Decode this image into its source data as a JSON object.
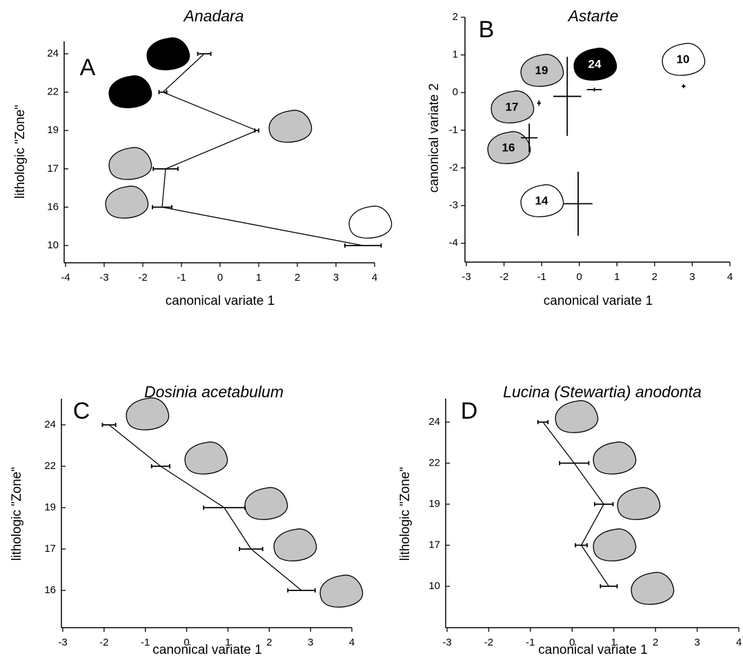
{
  "chart_data": [
    {
      "type": "line",
      "title": "Anadara",
      "panel_label": "A",
      "xlabel": "canonical variate 1",
      "ylabel": "lithologic \"Zone\"",
      "categories": [
        "24",
        "22",
        "19",
        "17",
        "16",
        "10"
      ],
      "values": [
        -0.41,
        -1.48,
        0.95,
        -1.41,
        -1.5,
        3.7
      ],
      "errors": [
        0.17,
        0.1,
        0.05,
        0.32,
        0.25,
        0.47
      ],
      "xlim": [
        -4,
        4
      ],
      "xticks": [
        -4,
        -3,
        -2,
        -1,
        0,
        1,
        2,
        3,
        4
      ],
      "color": "#000000",
      "marker_colors": [
        "#000000",
        "#000000",
        "#c4c4c4",
        "#c4c4c4",
        "#c4c4c4",
        "#ffffff"
      ]
    },
    {
      "type": "scatter",
      "title": "Astarte",
      "panel_label": "B",
      "xlabel": "canonical variate 1",
      "ylabel": "canonical variate 2",
      "point_labels": [
        "19",
        "24",
        "10",
        "17",
        "16",
        "14"
      ],
      "x": [
        -0.32,
        0.4,
        2.77,
        -1.07,
        -1.33,
        -0.03
      ],
      "y": [
        -0.1,
        0.08,
        0.17,
        -0.28,
        -1.2,
        -2.95
      ],
      "xerr": [
        0.37,
        0.2,
        0.05,
        0.05,
        0.22,
        0.38
      ],
      "yerr": [
        1.05,
        0.05,
        0.05,
        0.07,
        0.38,
        0.85
      ],
      "xlim": [
        -3,
        4
      ],
      "ylim": [
        -4.5,
        2
      ],
      "xticks": [
        -3,
        -2,
        -1,
        0,
        1,
        2,
        3,
        4
      ],
      "yticks": [
        -4,
        -3,
        -2,
        -1,
        0,
        1,
        2
      ],
      "color": "#000000",
      "marker_colors": [
        "#c4c4c4",
        "#000000",
        "#ffffff",
        "#c4c4c4",
        "#c4c4c4",
        "#ffffff"
      ]
    },
    {
      "type": "line",
      "title": "Dosinia acetabulum",
      "panel_label": "C",
      "xlabel": "canonical variate 1",
      "ylabel": "lithologic \"Zone\"",
      "categories": [
        "24",
        "22",
        "19",
        "17",
        "16"
      ],
      "values": [
        -1.88,
        -0.63,
        0.91,
        1.56,
        2.78
      ],
      "errors": [
        0.16,
        0.22,
        0.5,
        0.28,
        0.33
      ],
      "xlim": [
        -3,
        4
      ],
      "xticks": [
        -3,
        -2,
        -1,
        0,
        1,
        2,
        3,
        4
      ],
      "color": "#000000",
      "marker_colors": [
        "#c4c4c4",
        "#c4c4c4",
        "#c4c4c4",
        "#c4c4c4",
        "#c4c4c4"
      ]
    },
    {
      "type": "line",
      "title": "Lucina (Stewartia) anodonta",
      "panel_label": "D",
      "xlabel": "canonical variate 1",
      "ylabel": "lithologic \"Zone\"",
      "categories": [
        "24",
        "22",
        "19",
        "17",
        "10"
      ],
      "values": [
        -0.7,
        0.05,
        0.76,
        0.22,
        0.88
      ],
      "errors": [
        0.12,
        0.35,
        0.22,
        0.14,
        0.2
      ],
      "xlim": [
        -3,
        4
      ],
      "xticks": [
        -3,
        -2,
        -1,
        0,
        1,
        2,
        3,
        4
      ],
      "color": "#000000",
      "marker_colors": [
        "#c4c4c4",
        "#c4c4c4",
        "#c4c4c4",
        "#c4c4c4",
        "#c4c4c4"
      ]
    }
  ]
}
